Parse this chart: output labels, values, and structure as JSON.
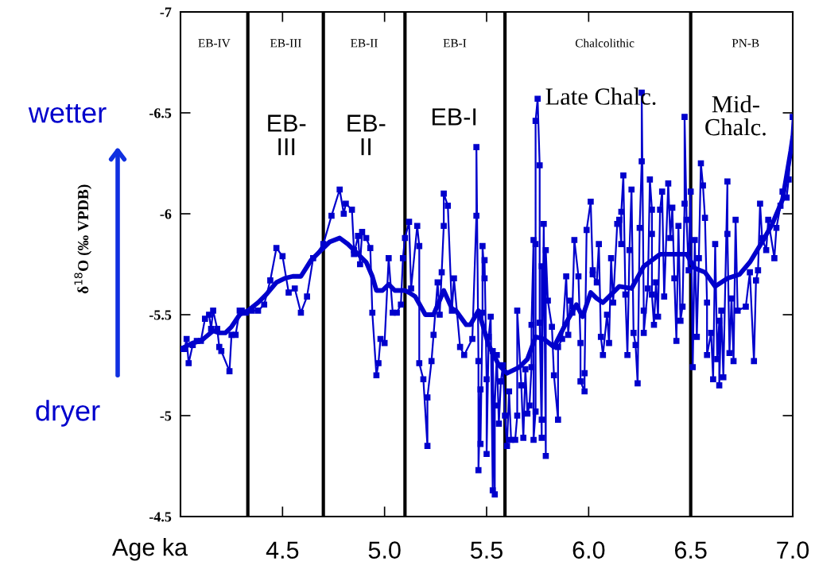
{
  "chart_data": {
    "type": "line",
    "xlabel": "Age ka",
    "ylabel": "δ$^{18}$O (‰ VPDB)",
    "xlim": [
      4.0,
      7.0
    ],
    "ylim": [
      -4.5,
      -7
    ],
    "xticks": [
      4.5,
      {
        "value": 5.0,
        "label": "5.0"
      },
      5.5,
      {
        "value": 6.0,
        "label": "6.0"
      },
      6.5,
      {
        "value": 7.0,
        "label": "7.0"
      }
    ],
    "yticks": [
      {
        "value": -7,
        "label": "-7"
      },
      {
        "value": -6.5,
        "label": "-6.5"
      },
      {
        "value": -6,
        "label": "-6"
      },
      {
        "value": -5.5,
        "label": "-5.5"
      },
      {
        "value": -5,
        "label": "-5"
      },
      {
        "value": -4.5,
        "label": "-4.5"
      }
    ],
    "grid": false,
    "legend": false,
    "series": [
      {
        "color": "#0000cc",
        "marker": "square",
        "line_style": "solid",
        "x": [
          4.0,
          4.02,
          4.03,
          4.04,
          4.06,
          4.08,
          4.1,
          4.12,
          4.14,
          4.15,
          4.16,
          4.18,
          4.19,
          4.2,
          4.24,
          4.25,
          4.27,
          4.29,
          4.3,
          4.32,
          4.35,
          4.38,
          4.41,
          4.44,
          4.47,
          4.5,
          4.53,
          4.56,
          4.59,
          4.62,
          4.65,
          4.7,
          4.74,
          4.78,
          4.8,
          4.81,
          4.84,
          4.85,
          4.85,
          4.87,
          4.88,
          4.89,
          4.91,
          4.93,
          4.94,
          4.96,
          4.97,
          4.98,
          5.0,
          5.02,
          5.04,
          5.06,
          5.08,
          5.09,
          5.1,
          5.12,
          5.13,
          5.16,
          5.17,
          5.17,
          5.19,
          5.21,
          5.21,
          5.23,
          5.24,
          5.26,
          5.27,
          5.28,
          5.29,
          5.29,
          5.31,
          5.33,
          5.34,
          5.37,
          5.39,
          5.43,
          5.45,
          5.45,
          5.46,
          5.46,
          5.47,
          5.47,
          5.48,
          5.48,
          5.49,
          5.49,
          5.5,
          5.5,
          5.51,
          5.52,
          5.53,
          5.53,
          5.54,
          5.54,
          5.55,
          5.56,
          5.57,
          5.58,
          5.59,
          5.6,
          5.61,
          5.62,
          5.64,
          5.65,
          5.65,
          5.67,
          5.68,
          5.69,
          5.7,
          5.71,
          5.72,
          5.72,
          5.73,
          5.73,
          5.74,
          5.74,
          5.74,
          5.75,
          5.76,
          5.76,
          5.77,
          5.77,
          5.77,
          5.78,
          5.79,
          5.79,
          5.8,
          5.82,
          5.83,
          5.85,
          5.85,
          5.87,
          5.89,
          5.9,
          5.91,
          5.92,
          5.93,
          5.95,
          5.96,
          5.96,
          5.98,
          5.98,
          5.99,
          6.01,
          6.02,
          6.02,
          6.04,
          6.05,
          6.06,
          6.07,
          6.09,
          6.1,
          6.11,
          6.12,
          6.14,
          6.15,
          6.16,
          6.16,
          6.17,
          6.18,
          6.19,
          6.2,
          6.21,
          6.22,
          6.23,
          6.24,
          6.25,
          6.26,
          6.26,
          6.27,
          6.27,
          6.29,
          6.3,
          6.31,
          6.31,
          6.31,
          6.32,
          6.33,
          6.34,
          6.35,
          6.36,
          6.37,
          6.39,
          6.4,
          6.41,
          6.42,
          6.43,
          6.44,
          6.45,
          6.46,
          6.47,
          6.47,
          6.48,
          6.49,
          6.5,
          6.51,
          6.52,
          6.53,
          6.54,
          6.55,
          6.56,
          6.57,
          6.58,
          6.58,
          6.6,
          6.61,
          6.62,
          6.63,
          6.64,
          6.64,
          6.65,
          6.66,
          6.68,
          6.68,
          6.69,
          6.7,
          6.71,
          6.72,
          6.73,
          6.77,
          6.79,
          6.81,
          6.82,
          6.83,
          6.84,
          6.85,
          6.87,
          6.88,
          6.91,
          6.92,
          6.94,
          6.95,
          6.97,
          6.98,
          7.0
        ],
        "values": [
          -5.33,
          -5.33,
          -5.38,
          -5.26,
          -5.35,
          -5.37,
          -5.37,
          -5.48,
          -5.5,
          -5.43,
          -5.52,
          -5.43,
          -5.34,
          -5.32,
          -5.22,
          -5.4,
          -5.4,
          -5.52,
          -5.52,
          -5.51,
          -5.52,
          -5.52,
          -5.55,
          -5.67,
          -5.83,
          -5.79,
          -5.61,
          -5.63,
          -5.51,
          -5.59,
          -5.78,
          -5.85,
          -5.99,
          -6.12,
          -6.0,
          -6.05,
          -6.02,
          -5.82,
          -5.8,
          -5.89,
          -5.75,
          -5.91,
          -5.88,
          -5.83,
          -5.51,
          -5.2,
          -5.26,
          -5.38,
          -5.36,
          -5.78,
          -5.51,
          -5.51,
          -5.55,
          -5.78,
          -5.88,
          -5.96,
          -5.63,
          -5.94,
          -5.84,
          -5.26,
          -5.18,
          -4.85,
          -5.09,
          -5.27,
          -5.4,
          -5.66,
          -5.5,
          -5.71,
          -5.94,
          -6.1,
          -6.04,
          -5.52,
          -5.68,
          -5.34,
          -5.3,
          -5.38,
          -5.99,
          -6.33,
          -5.27,
          -4.73,
          -5.13,
          -4.86,
          -5.51,
          -5.84,
          -5.68,
          -5.77,
          -5.18,
          -4.81,
          -5.39,
          -5.49,
          -4.63,
          -5.32,
          -4.61,
          -5.05,
          -5.3,
          -4.96,
          -5.17,
          -5.25,
          -5.0,
          -4.85,
          -5.12,
          -4.88,
          -4.88,
          -5.0,
          -5.52,
          -5.15,
          -4.89,
          -5.23,
          -5.01,
          -5.05,
          -5.24,
          -5.45,
          -5.87,
          -4.88,
          -5.02,
          -5.85,
          -6.46,
          -6.57,
          -6.24,
          -5.46,
          -4.89,
          -5.74,
          -4.98,
          -5.95,
          -4.8,
          -5.82,
          -5.57,
          -5.44,
          -5.2,
          -4.98,
          -5.34,
          -5.38,
          -5.69,
          -5.4,
          -5.57,
          -5.51,
          -5.87,
          -5.69,
          -5.36,
          -5.17,
          -5.12,
          -5.21,
          -5.92,
          -6.06,
          -5.72,
          -5.7,
          -5.66,
          -5.85,
          -5.39,
          -5.3,
          -5.5,
          -5.36,
          -5.78,
          -5.56,
          -5.95,
          -5.97,
          -5.85,
          -6.01,
          -6.19,
          -5.6,
          -5.3,
          -5.82,
          -6.12,
          -5.41,
          -5.35,
          -5.16,
          -5.93,
          -6.26,
          -6.6,
          -5.52,
          -5.41,
          -5.63,
          -6.17,
          -6.02,
          -5.9,
          -5.6,
          -5.45,
          -5.66,
          -5.49,
          -6.02,
          -6.11,
          -5.59,
          -6.15,
          -5.88,
          -6.03,
          -5.68,
          -5.37,
          -5.94,
          -5.47,
          -5.54,
          -6.05,
          -6.48,
          -5.97,
          -5.72,
          -6.11,
          -5.24,
          -5.87,
          -5.39,
          -5.78,
          -6.25,
          -6.14,
          -5.98,
          -5.56,
          -5.3,
          -5.41,
          -5.18,
          -5.85,
          -5.28,
          -5.47,
          -5.15,
          -5.52,
          -5.19,
          -6.16,
          -5.9,
          -5.31,
          -5.58,
          -5.27,
          -5.97,
          -5.52,
          -5.54,
          -5.71,
          -5.27,
          -5.67,
          -5.72,
          -6.05,
          -5.88,
          -5.82,
          -5.97,
          -5.78,
          -5.93,
          -6.04,
          -6.11,
          -6.08,
          -6.17,
          -6.48
        ]
      },
      {
        "color": "#0000cc",
        "marker": "none",
        "line_style": "solid",
        "x": [
          4.0,
          4.06,
          4.1,
          4.16,
          4.19,
          4.22,
          4.25,
          4.29,
          4.33,
          4.38,
          4.42,
          4.47,
          4.51,
          4.55,
          4.59,
          4.64,
          4.68,
          4.73,
          4.78,
          4.82,
          4.86,
          4.91,
          4.94,
          4.96,
          4.99,
          5.02,
          5.05,
          5.1,
          5.12,
          5.15,
          5.2,
          5.24,
          5.29,
          5.33,
          5.35,
          5.4,
          5.42,
          5.46,
          5.51,
          5.56,
          5.6,
          5.66,
          5.7,
          5.74,
          5.78,
          5.83,
          5.89,
          5.94,
          5.97,
          6.01,
          6.04,
          6.07,
          6.15,
          6.21,
          6.27,
          6.35,
          6.42,
          6.48,
          6.52,
          6.57,
          6.62,
          6.68,
          6.74,
          6.79,
          6.85,
          6.9,
          6.95,
          6.99,
          7.0
        ],
        "values": [
          -5.33,
          -5.36,
          -5.37,
          -5.42,
          -5.41,
          -5.41,
          -5.44,
          -5.5,
          -5.52,
          -5.56,
          -5.6,
          -5.66,
          -5.68,
          -5.69,
          -5.69,
          -5.77,
          -5.81,
          -5.86,
          -5.88,
          -5.85,
          -5.81,
          -5.76,
          -5.69,
          -5.62,
          -5.62,
          -5.65,
          -5.62,
          -5.62,
          -5.61,
          -5.59,
          -5.5,
          -5.5,
          -5.62,
          -5.53,
          -5.52,
          -5.45,
          -5.45,
          -5.52,
          -5.35,
          -5.25,
          -5.21,
          -5.24,
          -5.28,
          -5.39,
          -5.38,
          -5.34,
          -5.46,
          -5.55,
          -5.49,
          -5.61,
          -5.58,
          -5.56,
          -5.64,
          -5.63,
          -5.74,
          -5.8,
          -5.8,
          -5.8,
          -5.73,
          -5.71,
          -5.64,
          -5.68,
          -5.7,
          -5.76,
          -5.86,
          -5.95,
          -6.07,
          -6.31,
          -6.38
        ]
      }
    ],
    "ref_lines": [
      {
        "axis": "x",
        "value": 4.33,
        "color": "#000000"
      },
      {
        "axis": "x",
        "value": 4.7,
        "color": "#000000"
      },
      {
        "axis": "x",
        "value": 5.1,
        "color": "#000000"
      },
      {
        "axis": "x",
        "value": 5.59,
        "color": "#000000"
      },
      {
        "axis": "x",
        "value": 6.5,
        "color": "#000000"
      }
    ],
    "annotations": [
      "EB-IV",
      "EB-III",
      "EB-II",
      "EB-I",
      "Chalcolithic",
      "PN-B",
      "EB-\nIII",
      "EB-\nII",
      "EB-I",
      "Late Chalc.",
      "Mid-\nChalc.",
      "wetter",
      "dryer"
    ]
  }
}
